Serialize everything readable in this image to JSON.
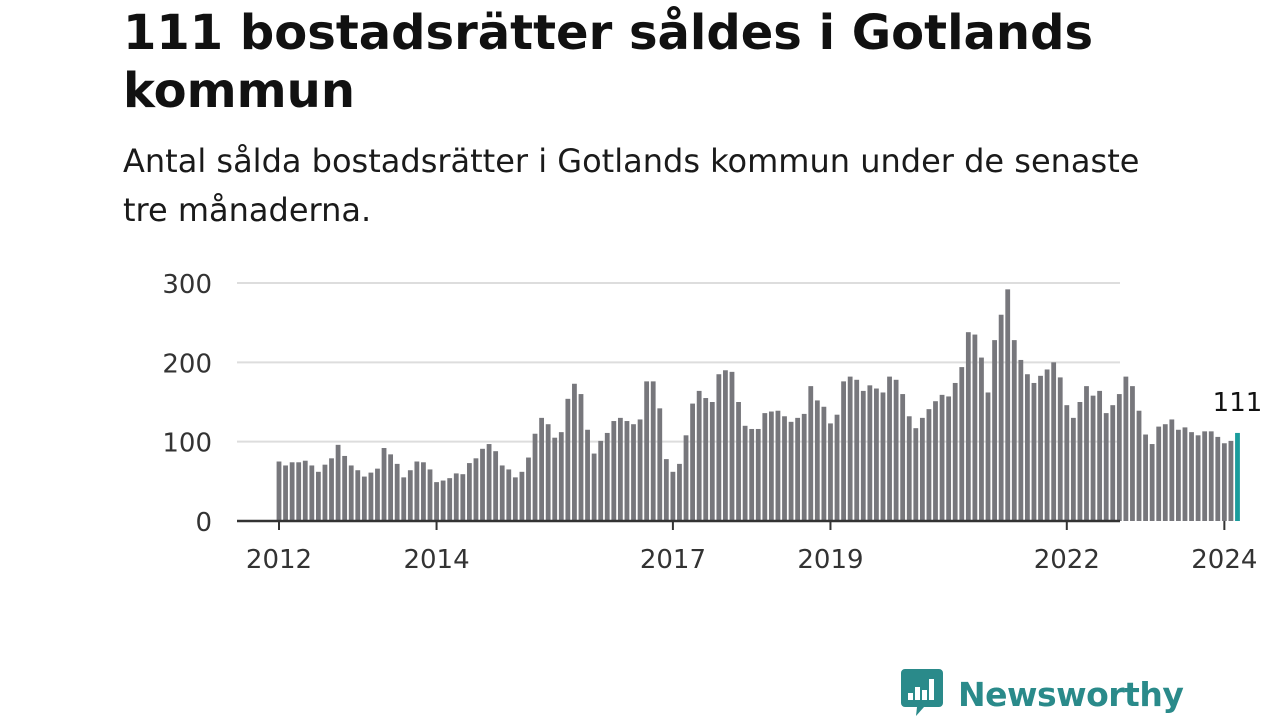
{
  "header": {
    "title": "111 bostadsrätter såldes i Gotlands kommun",
    "subtitle": "Antal sålda bostadsrätter i Gotlands kommun under de senaste tre månaderna."
  },
  "brand": {
    "name": "Newsworthy",
    "color": "#2a8a8a",
    "logo_icon": "bar-chart-bubble-icon"
  },
  "colors": {
    "bar": "#77777c",
    "highlight": "#1a9c9c",
    "grid": "#dddddd",
    "axis": "#333333"
  },
  "chart_data": {
    "type": "bar",
    "title": "111 bostadsrätter såldes i Gotlands kommun",
    "subtitle": "Antal sålda bostadsrätter i Gotlands kommun under de senaste tre månaderna.",
    "xlabel": "",
    "ylabel": "",
    "ylim": [
      0,
      300
    ],
    "yticks": [
      0,
      100,
      200,
      300
    ],
    "xticks": [
      "2012",
      "2014",
      "2017",
      "2019",
      "2022",
      "2024"
    ],
    "grid": true,
    "legend": "none",
    "highlight_label": "111",
    "values": [
      75,
      70,
      74,
      74,
      76,
      70,
      62,
      71,
      79,
      96,
      82,
      70,
      64,
      56,
      61,
      66,
      92,
      84,
      72,
      55,
      64,
      75,
      74,
      65,
      49,
      51,
      54,
      60,
      59,
      73,
      79,
      91,
      97,
      88,
      70,
      65,
      55,
      62,
      80,
      110,
      130,
      122,
      105,
      112,
      154,
      173,
      160,
      115,
      85,
      101,
      111,
      126,
      130,
      126,
      122,
      128,
      176,
      176,
      142,
      78,
      62,
      72,
      108,
      148,
      164,
      155,
      150,
      185,
      190,
      188,
      150,
      120,
      116,
      116,
      136,
      138,
      139,
      132,
      125,
      130,
      135,
      170,
      152,
      144,
      123,
      134,
      176,
      182,
      178,
      164,
      171,
      167,
      162,
      182,
      178,
      160,
      132,
      117,
      130,
      141,
      151,
      159,
      157,
      174,
      194,
      238,
      235,
      206,
      162,
      228,
      260,
      292,
      228,
      203,
      185,
      174,
      183,
      191,
      200,
      181,
      146,
      130,
      150,
      170,
      158,
      164,
      136,
      146,
      160,
      182,
      170,
      139,
      109,
      97,
      119,
      122,
      128,
      115,
      118,
      112,
      108,
      113,
      113,
      106,
      98,
      101,
      111
    ],
    "x_start": "2012-01",
    "x_end": "2024-03",
    "x_unit": "month",
    "highlight_last": true
  }
}
